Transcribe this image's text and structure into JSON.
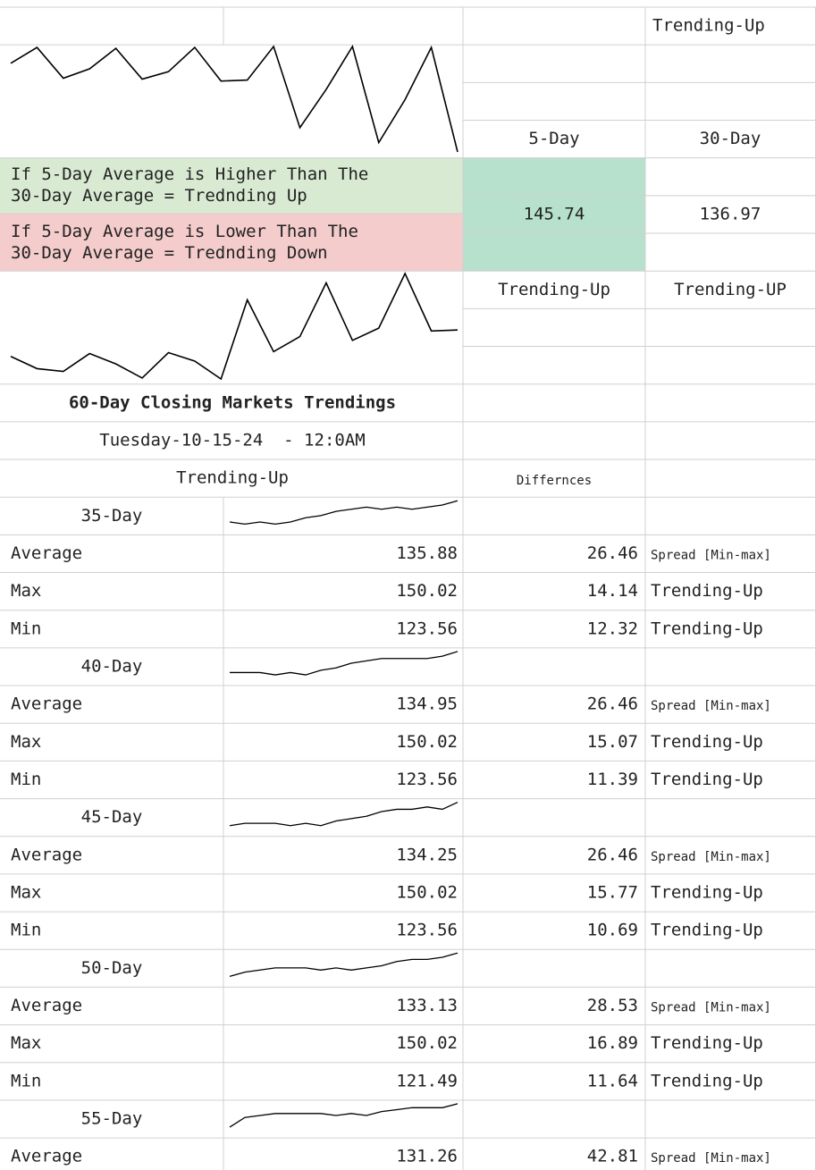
{
  "header_trend": "Trending-Up",
  "sparkline_top": {
    "values": [
      104,
      121,
      88,
      98,
      120,
      87,
      95,
      121,
      85,
      86,
      122,
      35,
      76,
      122,
      19,
      65,
      121,
      9
    ]
  },
  "five_day_label": "5-Day",
  "thirty_day_label": "30-Day",
  "rule_higher": "If 5-Day Average is Higher Than The 30-Day Average = Trednding Up",
  "rule_lower": "If 5-Day Average is Lower Than The 30-Day Average = Trednding Down",
  "five_day_average": 145.74,
  "thirty_day_average": 136.97,
  "five_day_trend": "Trending-Up",
  "thirty_day_trend": "Trending-UP",
  "sparkline_mid": {
    "values": [
      32,
      19,
      16,
      35,
      24,
      9,
      36,
      27,
      8,
      92,
      37,
      53,
      110,
      49,
      62,
      120,
      59,
      60
    ]
  },
  "title": "60-Day Closing Markets Trendings",
  "date": "Tuesday-10-15-24  - 12:0AM",
  "trend": "Trending-Up",
  "differences_header": "Differnces",
  "periods": [
    {
      "label": "35-Day",
      "sparkline": [
        2,
        1,
        2,
        1,
        2,
        4,
        5,
        7,
        8,
        9,
        8,
        9,
        8,
        9,
        10,
        12
      ],
      "rows": [
        {
          "label": "Average",
          "value": 135.88,
          "difference": 26.46,
          "note": "Spread [Min-max]"
        },
        {
          "label": "Max",
          "value": 150.02,
          "difference": 14.14,
          "note": "Trending-Up"
        },
        {
          "label": "Min",
          "value": 123.56,
          "difference": 12.32,
          "note": "Trending-Up"
        }
      ]
    },
    {
      "label": "40-Day",
      "sparkline": [
        3,
        3,
        3,
        2,
        3,
        2,
        4,
        5,
        7,
        8,
        9,
        9,
        9,
        9,
        10,
        12
      ],
      "rows": [
        {
          "label": "Average",
          "value": 134.95,
          "difference": 26.46,
          "note": "Spread [Min-max]"
        },
        {
          "label": "Max",
          "value": 150.02,
          "difference": 15.07,
          "note": "Trending-Up"
        },
        {
          "label": "Min",
          "value": 123.56,
          "difference": 11.39,
          "note": "Trending-Up"
        }
      ]
    },
    {
      "label": "45-Day",
      "sparkline": [
        2,
        3,
        3,
        3,
        2,
        3,
        2,
        4,
        5,
        6,
        8,
        9,
        9,
        10,
        9,
        12
      ],
      "rows": [
        {
          "label": "Average",
          "value": 134.25,
          "difference": 26.46,
          "note": "Spread [Min-max]"
        },
        {
          "label": "Max",
          "value": 150.02,
          "difference": 15.77,
          "note": "Trending-Up"
        },
        {
          "label": "Min",
          "value": 123.56,
          "difference": 10.69,
          "note": "Trending-Up"
        }
      ]
    },
    {
      "label": "50-Day",
      "sparkline": [
        1,
        3,
        4,
        5,
        5,
        5,
        4,
        5,
        4,
        5,
        6,
        8,
        9,
        9,
        10,
        12
      ],
      "rows": [
        {
          "label": "Average",
          "value": 133.13,
          "difference": 28.53,
          "note": "Spread [Min-max]"
        },
        {
          "label": "Max",
          "value": 150.02,
          "difference": 16.89,
          "note": "Trending-Up"
        },
        {
          "label": "Min",
          "value": 121.49,
          "difference": 11.64,
          "note": "Trending-Up"
        }
      ]
    },
    {
      "label": "55-Day",
      "sparkline": [
        0,
        5,
        6,
        7,
        7,
        7,
        7,
        6,
        7,
        6,
        8,
        9,
        10,
        10,
        10,
        12
      ],
      "rows": [
        {
          "label": "Average",
          "value": 131.26,
          "difference": 42.81,
          "note": "Spread [Min-max]"
        }
      ]
    }
  ]
}
